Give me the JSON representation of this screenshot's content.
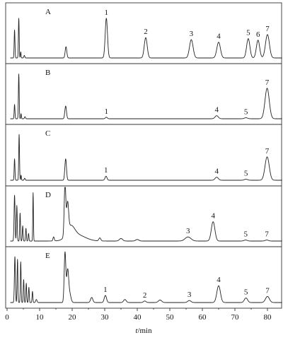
{
  "chart_data": {
    "type": "line",
    "xlabel_var": "t",
    "xlabel_unit": "/min",
    "xlim": [
      0,
      85
    ],
    "xticks": [
      0,
      10,
      20,
      30,
      40,
      50,
      60,
      70,
      80
    ],
    "panels": [
      {
        "label": "A",
        "baseline": 0.04,
        "peaks": [
          {
            "t": 2.3,
            "h": 0.55,
            "w": 0.12
          },
          {
            "t": 3.6,
            "h": 0.78,
            "w": 0.12
          },
          {
            "t": 4.2,
            "h": 0.12,
            "w": 0.1
          },
          {
            "t": 5.3,
            "h": 0.05,
            "w": 0.15
          },
          {
            "t": 18.1,
            "h": 0.22,
            "w": 0.25
          },
          {
            "t": 30.5,
            "h": 0.78,
            "w": 0.35,
            "label": "1"
          },
          {
            "t": 42.6,
            "h": 0.4,
            "w": 0.45,
            "label": "2"
          },
          {
            "t": 56.6,
            "h": 0.36,
            "w": 0.55,
            "label": "3"
          },
          {
            "t": 65.0,
            "h": 0.31,
            "w": 0.55,
            "label": "4"
          },
          {
            "t": 74.1,
            "h": 0.38,
            "w": 0.5,
            "label": "5"
          },
          {
            "t": 77.1,
            "h": 0.35,
            "w": 0.5,
            "label": "6"
          },
          {
            "t": 80.0,
            "h": 0.46,
            "w": 0.6,
            "label": "7"
          }
        ]
      },
      {
        "label": "B",
        "baseline": 0.03,
        "peaks": [
          {
            "t": 2.3,
            "h": 0.28,
            "w": 0.12
          },
          {
            "t": 3.6,
            "h": 0.88,
            "w": 0.12
          },
          {
            "t": 4.3,
            "h": 0.1,
            "w": 0.1
          },
          {
            "t": 5.5,
            "h": 0.04,
            "w": 0.15
          },
          {
            "t": 18.0,
            "h": 0.25,
            "w": 0.25
          },
          {
            "t": 30.5,
            "h": 0.03,
            "w": 0.3,
            "label": "1"
          },
          {
            "t": 64.4,
            "h": 0.06,
            "w": 0.5,
            "label": "4"
          },
          {
            "t": 73.4,
            "h": 0.02,
            "w": 0.5,
            "label": "5"
          },
          {
            "t": 79.9,
            "h": 0.6,
            "w": 0.65,
            "label": "7"
          }
        ]
      },
      {
        "label": "C",
        "baseline": 0.03,
        "peaks": [
          {
            "t": 2.3,
            "h": 0.42,
            "w": 0.12
          },
          {
            "t": 3.7,
            "h": 0.9,
            "w": 0.12
          },
          {
            "t": 4.3,
            "h": 0.1,
            "w": 0.1
          },
          {
            "t": 5.4,
            "h": 0.04,
            "w": 0.15
          },
          {
            "t": 18.0,
            "h": 0.42,
            "w": 0.25
          },
          {
            "t": 30.4,
            "h": 0.08,
            "w": 0.3,
            "label": "1"
          },
          {
            "t": 64.4,
            "h": 0.06,
            "w": 0.5,
            "label": "4"
          },
          {
            "t": 73.4,
            "h": 0.02,
            "w": 0.5,
            "label": "5"
          },
          {
            "t": 79.9,
            "h": 0.46,
            "w": 0.65,
            "label": "7"
          }
        ]
      },
      {
        "label": "D",
        "baseline": 0.05,
        "peaks": [
          {
            "t": 2.3,
            "h": 0.9,
            "w": 0.15
          },
          {
            "t": 3.0,
            "h": 0.7,
            "w": 0.12
          },
          {
            "t": 4.0,
            "h": 0.55,
            "w": 0.12
          },
          {
            "t": 4.8,
            "h": 0.3,
            "w": 0.12
          },
          {
            "t": 5.8,
            "h": 0.25,
            "w": 0.12
          },
          {
            "t": 6.6,
            "h": 0.15,
            "w": 0.12
          },
          {
            "t": 8.0,
            "h": 0.95,
            "w": 0.1
          },
          {
            "t": 14.3,
            "h": 0.08,
            "w": 0.2
          },
          {
            "t": 17.8,
            "h": 1.0,
            "w": 0.25
          },
          {
            "t": 18.6,
            "h": 0.55,
            "w": 0.3
          },
          {
            "t": 19.5,
            "h": 0.22,
            "w": 1.2
          },
          {
            "t": 21.5,
            "h": 0.12,
            "w": 2.5
          },
          {
            "t": 28.5,
            "h": 0.06,
            "w": 0.3
          },
          {
            "t": 35.0,
            "h": 0.05,
            "w": 0.5
          },
          {
            "t": 40.0,
            "h": 0.03,
            "w": 0.5
          },
          {
            "t": 55.6,
            "h": 0.08,
            "w": 0.9,
            "label": "3"
          },
          {
            "t": 63.3,
            "h": 0.38,
            "w": 0.55,
            "label": "4"
          },
          {
            "t": 73.3,
            "h": 0.02,
            "w": 0.5,
            "label": "5"
          },
          {
            "t": 79.8,
            "h": 0.02,
            "w": 0.5,
            "label": "7"
          }
        ]
      },
      {
        "label": "E",
        "baseline": 0.05,
        "peaks": [
          {
            "t": 2.4,
            "h": 0.9,
            "w": 0.15
          },
          {
            "t": 3.2,
            "h": 0.85,
            "w": 0.12
          },
          {
            "t": 4.2,
            "h": 0.8,
            "w": 0.12
          },
          {
            "t": 5.1,
            "h": 0.45,
            "w": 0.12
          },
          {
            "t": 5.9,
            "h": 0.38,
            "w": 0.12
          },
          {
            "t": 6.7,
            "h": 0.3,
            "w": 0.12
          },
          {
            "t": 7.8,
            "h": 0.22,
            "w": 0.12
          },
          {
            "t": 9.0,
            "h": 0.06,
            "w": 0.2
          },
          {
            "t": 17.8,
            "h": 0.98,
            "w": 0.25
          },
          {
            "t": 18.6,
            "h": 0.6,
            "w": 0.3
          },
          {
            "t": 19.2,
            "h": 0.18,
            "w": 0.4
          },
          {
            "t": 26.0,
            "h": 0.1,
            "w": 0.35
          },
          {
            "t": 30.2,
            "h": 0.14,
            "w": 0.35,
            "label": "1"
          },
          {
            "t": 36.2,
            "h": 0.06,
            "w": 0.4
          },
          {
            "t": 42.3,
            "h": 0.03,
            "w": 0.4,
            "label": "2"
          },
          {
            "t": 47.0,
            "h": 0.05,
            "w": 0.5
          },
          {
            "t": 56.0,
            "h": 0.04,
            "w": 0.5,
            "label": "3"
          },
          {
            "t": 65.0,
            "h": 0.33,
            "w": 0.55,
            "label": "4"
          },
          {
            "t": 73.4,
            "h": 0.09,
            "w": 0.5,
            "label": "5"
          },
          {
            "t": 80.0,
            "h": 0.12,
            "w": 0.6,
            "label": "7"
          }
        ]
      }
    ]
  }
}
